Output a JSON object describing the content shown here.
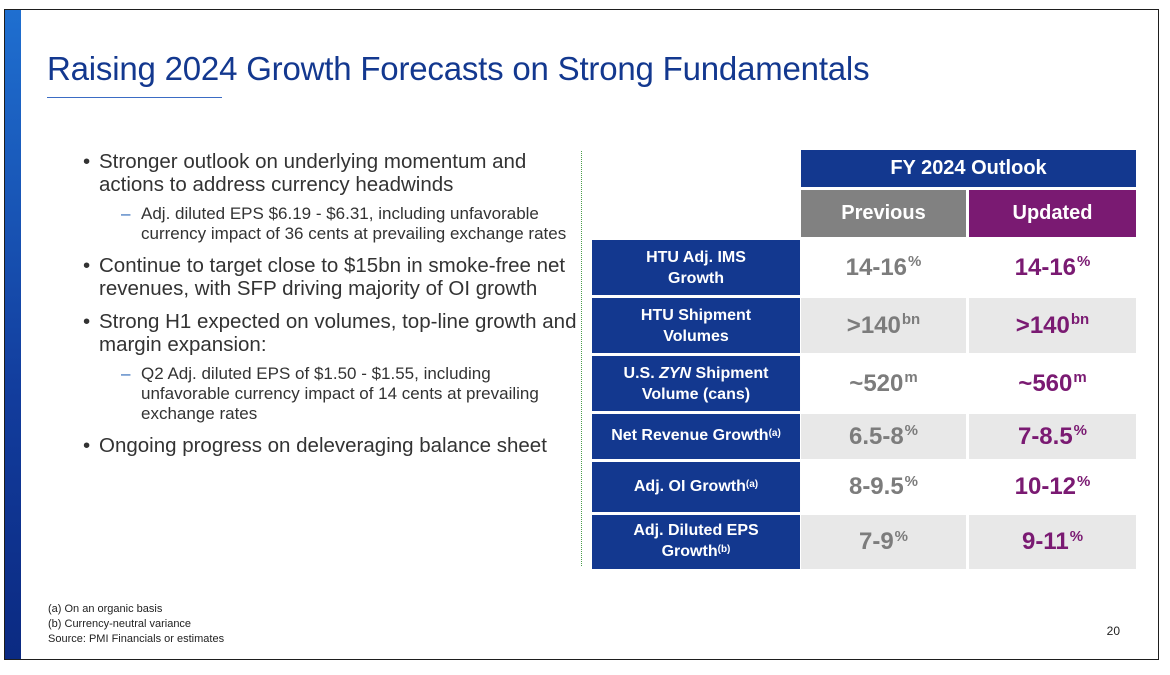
{
  "title": "Raising 2024 Growth Forecasts on Strong Fundamentals",
  "bullets": [
    {
      "text": "Stronger outlook on underlying momentum and actions to address currency headwinds",
      "sub": [
        "Adj. diluted EPS $6.19 - $6.31, including unfavorable currency impact of 36 cents at prevailing exchange rates"
      ]
    },
    {
      "text": "Continue to target close to $15bn in smoke-free net revenues, with SFP driving majority of OI growth",
      "sub": []
    },
    {
      "text": "Strong H1 expected on volumes, top-line growth and margin expansion:",
      "sub": [
        "Q2 Adj. diluted EPS of $1.50 - $1.55, including unfavorable currency impact of 14 cents at prevailing exchange rates"
      ]
    },
    {
      "text": "Ongoing progress on deleveraging balance sheet",
      "sub": []
    }
  ],
  "table": {
    "header": "FY 2024 Outlook",
    "col_previous": "Previous",
    "col_updated": "Updated",
    "rows": [
      {
        "l1": "HTU Adj. IMS",
        "l2": "Growth",
        "prev": "14-16",
        "prev_sup": "%",
        "upd": "14-16",
        "upd_sup": "%"
      },
      {
        "l1": "HTU Shipment",
        "l2": "Volumes",
        "prev": ">140",
        "prev_sup": "bn",
        "upd": ">140",
        "upd_sup": "bn"
      },
      {
        "l1a": "U.S. ",
        "l1b": "ZYN",
        "l1c": " Shipment",
        "l2": "Volume (cans)",
        "prev": "~520",
        "prev_sup": "m",
        "upd": "~560",
        "upd_sup": "m"
      },
      {
        "l1": "Net Revenue Growth",
        "l1_sup": "(a)",
        "prev": "6.5-8",
        "prev_sup": "%",
        "upd": "7-8.5",
        "upd_sup": "%"
      },
      {
        "l1": "Adj. OI Growth",
        "l1_sup": "(a)",
        "prev": "8-9.5",
        "prev_sup": "%",
        "upd": "10-12",
        "upd_sup": "%"
      },
      {
        "l1": "Adj. Diluted EPS",
        "l2": "Growth",
        "l2_sup": "(b)",
        "prev": "7-9",
        "prev_sup": "%",
        "upd": "9-11",
        "upd_sup": "%"
      }
    ]
  },
  "footnotes": [
    "(a) On an organic basis",
    "(b) Currency-neutral variance",
    "Source: PMI Financials or estimates"
  ],
  "page_number": "20",
  "colors": {
    "navy": "#13388f",
    "purple": "#7a1a72",
    "gray_header": "#818181",
    "gray_cell": "#e8e8e8"
  }
}
